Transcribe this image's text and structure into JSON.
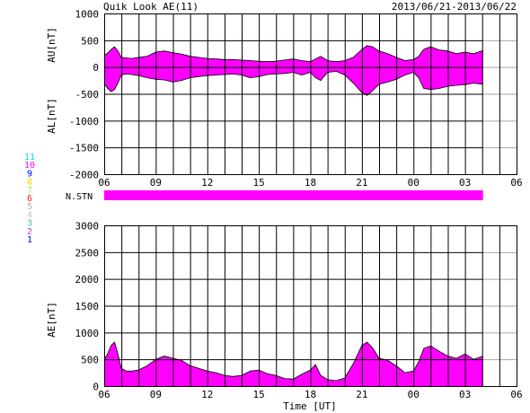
{
  "header": {
    "title": "Quik Look AE(11)",
    "date_range": "2013/06/21-2013/06/22"
  },
  "colors": {
    "fill": "#ff00ff",
    "axis": "#000000",
    "background": "#ffffff"
  },
  "station_legend": [
    {
      "label": "11",
      "color": "#00e0e0"
    },
    {
      "label": "10",
      "color": "#ff00ff"
    },
    {
      "label": "9",
      "color": "#0000ff"
    },
    {
      "label": "8",
      "color": "#ffd400"
    },
    {
      "label": "7",
      "color": "#90ff30"
    },
    {
      "label": "6",
      "color": "#ff2020"
    },
    {
      "label": "5",
      "color": "#b0b0b0"
    },
    {
      "label": "4",
      "color": "#c8c8c8"
    },
    {
      "label": "3",
      "color": "#40c0a0"
    },
    {
      "label": "2",
      "color": "#c040c0"
    },
    {
      "label": "1",
      "color": "#0000c0"
    }
  ],
  "nstn_label": "N.STN",
  "chart_data": [
    {
      "type": "area",
      "panel": "AU/AL",
      "ylabel_upper": "AU[nT]",
      "ylabel_lower": "AL[nT]",
      "xlim": [
        6,
        30
      ],
      "ylim": [
        -2000,
        1000
      ],
      "yticks": [
        1000,
        500,
        0,
        -500,
        -1000,
        -1500,
        -2000
      ],
      "xtick_labels": [
        "06",
        "09",
        "12",
        "15",
        "18",
        "21",
        "00",
        "03",
        "06"
      ],
      "grid": true,
      "data_end_hour": 28.05,
      "series": [
        {
          "x": [
            6.0,
            6.2,
            6.4,
            6.6,
            6.8,
            7.0,
            7.3,
            7.6,
            8.0,
            8.5,
            9.0,
            9.5,
            10.0,
            10.5,
            11.0,
            11.5,
            12.0,
            12.5,
            13.0,
            13.5,
            14.0,
            14.5,
            15.0,
            15.5,
            16.0,
            16.5,
            17.0,
            17.5,
            18.0,
            18.3,
            18.6,
            19.0,
            19.5,
            20.0,
            20.5,
            21.0,
            21.3,
            21.6,
            22.0,
            22.5,
            23.0,
            23.5,
            24.0,
            24.3,
            24.6,
            25.0,
            25.5,
            26.0,
            26.5,
            27.0,
            27.5,
            28.05
          ],
          "values": [
            220,
            260,
            330,
            380,
            300,
            180,
            170,
            160,
            180,
            200,
            280,
            300,
            270,
            240,
            200,
            180,
            160,
            150,
            140,
            140,
            130,
            120,
            110,
            100,
            110,
            130,
            150,
            120,
            100,
            150,
            200,
            120,
            100,
            120,
            180,
            330,
            400,
            380,
            300,
            250,
            180,
            120,
            140,
            200,
            330,
            380,
            320,
            300,
            250,
            280,
            250,
            310
          ]
        },
        {
          "x": [
            6.0,
            6.2,
            6.4,
            6.6,
            6.8,
            7.0,
            7.3,
            7.6,
            8.0,
            8.5,
            9.0,
            9.5,
            10.0,
            10.5,
            11.0,
            11.5,
            12.0,
            12.5,
            13.0,
            13.5,
            14.0,
            14.5,
            15.0,
            15.5,
            16.0,
            16.5,
            17.0,
            17.5,
            18.0,
            18.3,
            18.6,
            19.0,
            19.5,
            20.0,
            20.5,
            21.0,
            21.3,
            21.6,
            22.0,
            22.5,
            23.0,
            23.5,
            24.0,
            24.3,
            24.6,
            25.0,
            25.5,
            26.0,
            26.5,
            27.0,
            27.5,
            28.05
          ],
          "values": [
            -300,
            -400,
            -460,
            -420,
            -300,
            -150,
            -130,
            -140,
            -160,
            -200,
            -230,
            -240,
            -280,
            -250,
            -200,
            -180,
            -160,
            -150,
            -140,
            -130,
            -150,
            -200,
            -180,
            -140,
            -130,
            -120,
            -100,
            -150,
            -100,
            -200,
            -250,
            -100,
            -80,
            -150,
            -300,
            -480,
            -530,
            -450,
            -320,
            -280,
            -230,
            -150,
            -100,
            -200,
            -400,
            -420,
            -400,
            -360,
            -340,
            -330,
            -300,
            -320
          ]
        }
      ]
    },
    {
      "type": "area",
      "panel": "AE",
      "ylabel": "AE[nT]",
      "xlabel": "Time [UT]",
      "xlim": [
        6,
        30
      ],
      "ylim": [
        0,
        3000
      ],
      "yticks": [
        3000,
        2500,
        2000,
        1500,
        1000,
        500,
        0
      ],
      "xtick_labels": [
        "06",
        "09",
        "12",
        "15",
        "18",
        "21",
        "00",
        "03",
        "06"
      ],
      "grid": true,
      "data_end_hour": 28.05,
      "series": [
        {
          "x": [
            6.0,
            6.2,
            6.4,
            6.6,
            6.8,
            7.0,
            7.3,
            7.6,
            8.0,
            8.5,
            9.0,
            9.5,
            10.0,
            10.5,
            11.0,
            11.5,
            12.0,
            12.5,
            13.0,
            13.5,
            14.0,
            14.5,
            15.0,
            15.5,
            16.0,
            16.5,
            17.0,
            17.5,
            18.0,
            18.3,
            18.6,
            19.0,
            19.5,
            20.0,
            20.5,
            21.0,
            21.3,
            21.6,
            22.0,
            22.5,
            23.0,
            23.5,
            24.0,
            24.3,
            24.6,
            25.0,
            25.5,
            26.0,
            26.5,
            27.0,
            27.5,
            28.05
          ],
          "values": [
            500,
            600,
            760,
            820,
            600,
            330,
            280,
            280,
            300,
            380,
            500,
            560,
            520,
            480,
            380,
            330,
            280,
            250,
            200,
            180,
            200,
            280,
            300,
            230,
            200,
            140,
            130,
            220,
            300,
            400,
            200,
            120,
            100,
            150,
            420,
            760,
            820,
            720,
            520,
            480,
            380,
            250,
            280,
            450,
            700,
            750,
            650,
            560,
            520,
            600,
            500,
            560
          ]
        }
      ]
    }
  ]
}
